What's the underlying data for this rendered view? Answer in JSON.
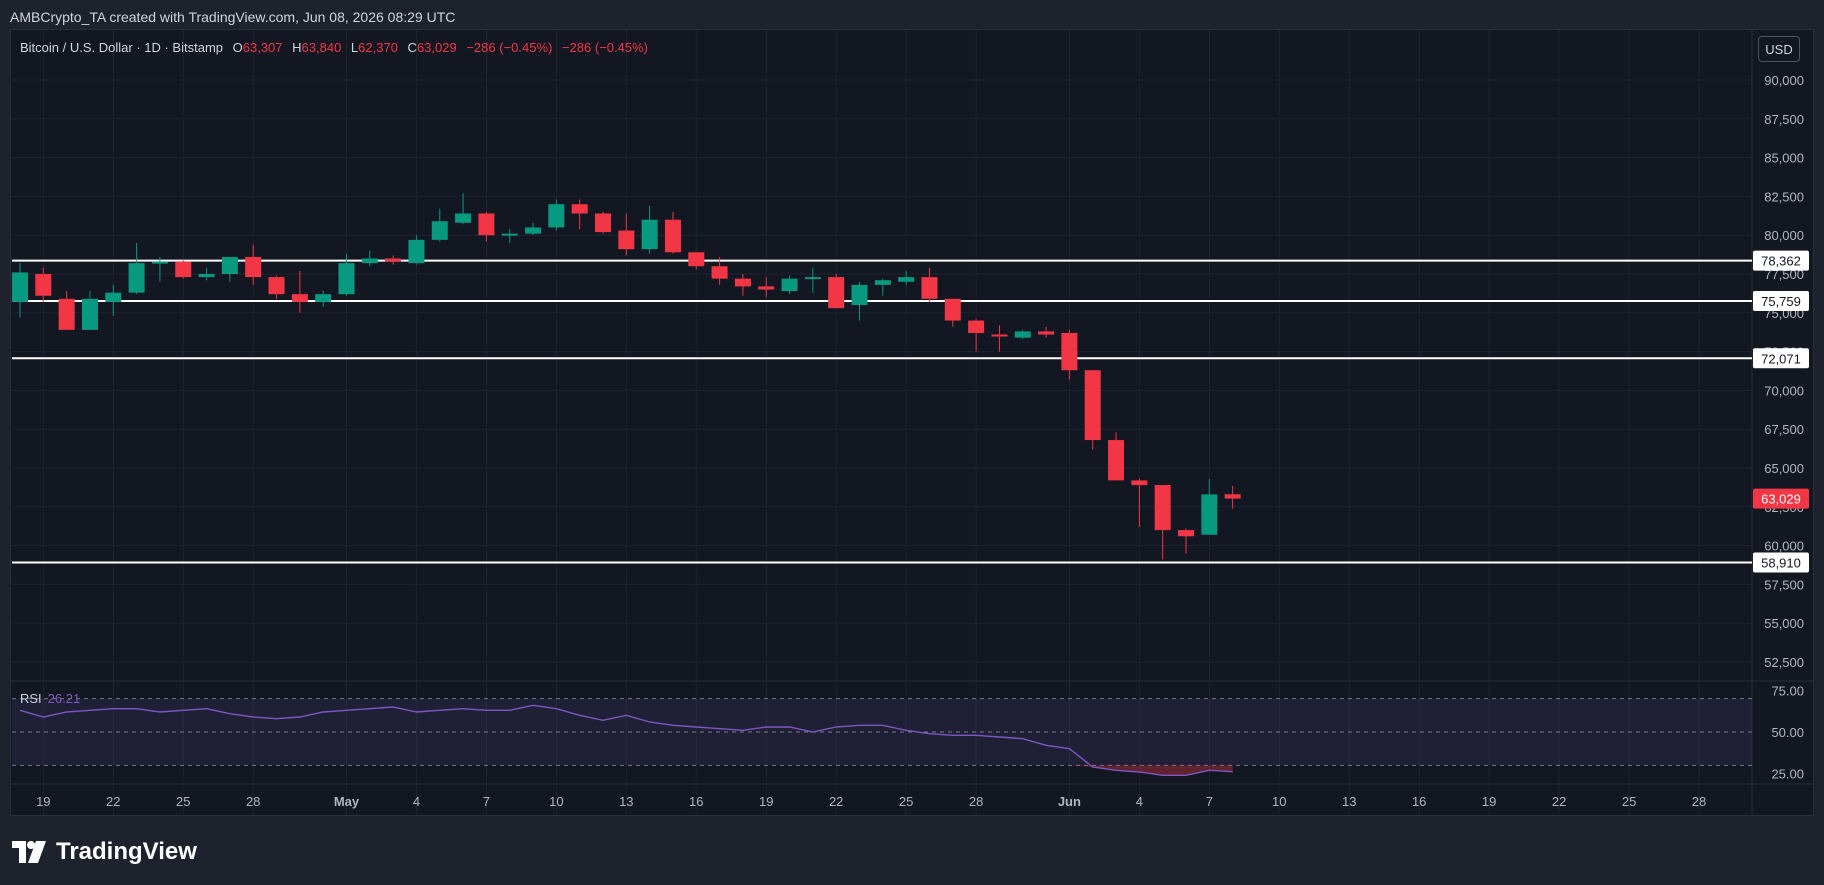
{
  "header": {
    "credit": "AMBCrypto_TA created with TradingView.com, Jun 08, 2026 08:29 UTC"
  },
  "legend": {
    "symbol": "Bitcoin / U.S. Dollar · 1D · Bitstamp",
    "o_label": "O",
    "o": "63,307",
    "h_label": "H",
    "h": "63,840",
    "l_label": "L",
    "l": "62,370",
    "c_label": "C",
    "c": "63,029",
    "chg1": "−286 (−0.45%)",
    "chg2": "−286 (−0.45%)"
  },
  "currency_button": "USD",
  "brand": "TradingView",
  "colors": {
    "up": "#089981",
    "down": "#f23645",
    "background": "#131722",
    "rsi_line": "#7e57c2",
    "level": "#ffffff"
  },
  "chart_data": {
    "type": "candlestick",
    "y_axis_range": [
      51500,
      91500
    ],
    "y_ticks": [
      "52,500",
      "55,000",
      "57,500",
      "60,000",
      "62,500",
      "65,000",
      "67,500",
      "70,000",
      "72,500",
      "75,000",
      "77,500",
      "80,000",
      "82,500",
      "85,000",
      "87,500",
      "90,000"
    ],
    "x_ticks": [
      "19",
      "22",
      "25",
      "28",
      "May",
      "4",
      "7",
      "10",
      "13",
      "16",
      "19",
      "22",
      "25",
      "28",
      "Jun",
      "4",
      "7",
      "10",
      "13",
      "16",
      "19",
      "22",
      "25",
      "28"
    ],
    "level_labels": [
      "78,362",
      "75,759",
      "72,071",
      "58,910"
    ],
    "levels": [
      78362,
      75759,
      72071,
      58910
    ],
    "last_price_label": "63,029",
    "last_price": 63029,
    "candles": [
      {
        "o": 75700,
        "h": 78200,
        "l": 74700,
        "c": 77600
      },
      {
        "o": 77500,
        "h": 77900,
        "l": 75700,
        "c": 76100
      },
      {
        "o": 75900,
        "h": 76400,
        "l": 73900,
        "c": 73900
      },
      {
        "o": 73900,
        "h": 76400,
        "l": 73900,
        "c": 75900
      },
      {
        "o": 75700,
        "h": 76800,
        "l": 74800,
        "c": 76300
      },
      {
        "o": 76300,
        "h": 79500,
        "l": 76200,
        "c": 78200
      },
      {
        "o": 78200,
        "h": 78600,
        "l": 77000,
        "c": 78300
      },
      {
        "o": 78300,
        "h": 78400,
        "l": 77200,
        "c": 77300
      },
      {
        "o": 77300,
        "h": 77900,
        "l": 77100,
        "c": 77500
      },
      {
        "o": 77500,
        "h": 78500,
        "l": 77000,
        "c": 78600
      },
      {
        "o": 78600,
        "h": 79400,
        "l": 76800,
        "c": 77300
      },
      {
        "o": 77300,
        "h": 77400,
        "l": 75900,
        "c": 76200
      },
      {
        "o": 76200,
        "h": 77700,
        "l": 75000,
        "c": 75700
      },
      {
        "o": 75700,
        "h": 76400,
        "l": 75400,
        "c": 76200
      },
      {
        "o": 76200,
        "h": 78800,
        "l": 76100,
        "c": 78200
      },
      {
        "o": 78200,
        "h": 79000,
        "l": 78000,
        "c": 78500
      },
      {
        "o": 78500,
        "h": 78700,
        "l": 78100,
        "c": 78300
      },
      {
        "o": 78200,
        "h": 80000,
        "l": 78100,
        "c": 79700
      },
      {
        "o": 79700,
        "h": 81700,
        "l": 79600,
        "c": 80900
      },
      {
        "o": 80800,
        "h": 82700,
        "l": 80700,
        "c": 81400
      },
      {
        "o": 81400,
        "h": 81500,
        "l": 79600,
        "c": 80000
      },
      {
        "o": 80000,
        "h": 80400,
        "l": 79500,
        "c": 80100
      },
      {
        "o": 80100,
        "h": 80800,
        "l": 80000,
        "c": 80500
      },
      {
        "o": 80500,
        "h": 82300,
        "l": 80300,
        "c": 82000
      },
      {
        "o": 82000,
        "h": 82300,
        "l": 80400,
        "c": 81400
      },
      {
        "o": 81400,
        "h": 81500,
        "l": 80100,
        "c": 80200
      },
      {
        "o": 80300,
        "h": 81400,
        "l": 78700,
        "c": 79100
      },
      {
        "o": 79100,
        "h": 81900,
        "l": 78800,
        "c": 81000
      },
      {
        "o": 81000,
        "h": 81500,
        "l": 78800,
        "c": 78900
      },
      {
        "o": 78900,
        "h": 78900,
        "l": 77800,
        "c": 78000
      },
      {
        "o": 78000,
        "h": 78600,
        "l": 76800,
        "c": 77200
      },
      {
        "o": 77200,
        "h": 77500,
        "l": 76100,
        "c": 76700
      },
      {
        "o": 76700,
        "h": 77300,
        "l": 76000,
        "c": 76500
      },
      {
        "o": 76400,
        "h": 77400,
        "l": 76200,
        "c": 77200
      },
      {
        "o": 77200,
        "h": 77900,
        "l": 76300,
        "c": 77300
      },
      {
        "o": 77300,
        "h": 77500,
        "l": 75300,
        "c": 75300
      },
      {
        "o": 75500,
        "h": 77000,
        "l": 74500,
        "c": 76800
      },
      {
        "o": 76800,
        "h": 77200,
        "l": 76100,
        "c": 77100
      },
      {
        "o": 77000,
        "h": 77700,
        "l": 76800,
        "c": 77300
      },
      {
        "o": 77300,
        "h": 77900,
        "l": 75700,
        "c": 75900
      },
      {
        "o": 75900,
        "h": 75900,
        "l": 74100,
        "c": 74500
      },
      {
        "o": 74500,
        "h": 74600,
        "l": 72500,
        "c": 73700
      },
      {
        "o": 73600,
        "h": 74200,
        "l": 72500,
        "c": 73500
      },
      {
        "o": 73400,
        "h": 73900,
        "l": 73300,
        "c": 73800
      },
      {
        "o": 73800,
        "h": 74100,
        "l": 73400,
        "c": 73600
      },
      {
        "o": 73700,
        "h": 73900,
        "l": 70700,
        "c": 71300
      },
      {
        "o": 71300,
        "h": 71300,
        "l": 66200,
        "c": 66800
      },
      {
        "o": 66800,
        "h": 67300,
        "l": 64200,
        "c": 64200
      },
      {
        "o": 64200,
        "h": 64300,
        "l": 61200,
        "c": 63900
      },
      {
        "o": 63900,
        "h": 63900,
        "l": 59100,
        "c": 61000
      },
      {
        "o": 61000,
        "h": 61100,
        "l": 59500,
        "c": 60600
      },
      {
        "o": 60700,
        "h": 64300,
        "l": 60700,
        "c": 63300
      },
      {
        "o": 63307,
        "h": 63840,
        "l": 62370,
        "c": 63029
      }
    ],
    "rsi": {
      "label": "RSI",
      "value_label": "26.21",
      "range": [
        20,
        77
      ],
      "ticks": [
        "25.00",
        "50.00",
        "75.00"
      ],
      "bands": [
        30,
        50,
        70
      ],
      "values": [
        63,
        59,
        62,
        63,
        64,
        64,
        62,
        63,
        64,
        61,
        59,
        58,
        59,
        62,
        63,
        64,
        65,
        62,
        63,
        64,
        63,
        63,
        66,
        64,
        60,
        57,
        60,
        56,
        54,
        53,
        52,
        51,
        53,
        53,
        50,
        53,
        54,
        54,
        51,
        49,
        48,
        48,
        47,
        46,
        42,
        40,
        29,
        27,
        26,
        24,
        24,
        27,
        26.2
      ]
    }
  }
}
